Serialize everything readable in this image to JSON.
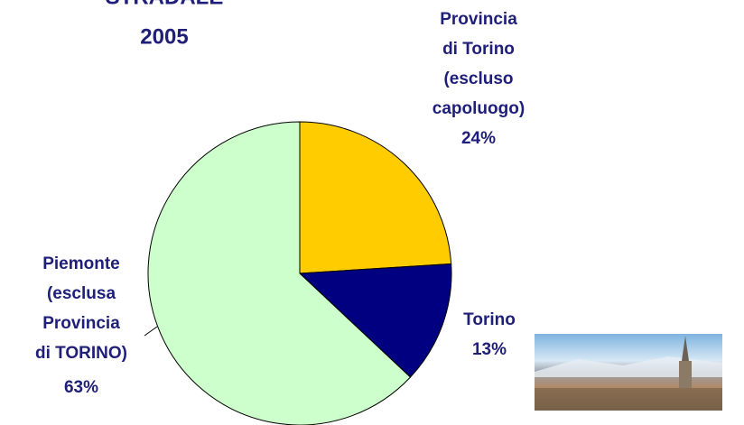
{
  "chart_data": {
    "type": "pie",
    "title_lines": [
      "STRADALE",
      "2005"
    ],
    "categories": [
      "Provincia di Torino (escluso capoluogo)",
      "Torino",
      "Piemonte (esclusa Provincia di TORINO)"
    ],
    "values": [
      24,
      13,
      63
    ],
    "value_labels": [
      "24%",
      "13%",
      "63%"
    ],
    "colors": [
      "#FFCC00",
      "#000080",
      "#CCFFCC"
    ]
  }
}
